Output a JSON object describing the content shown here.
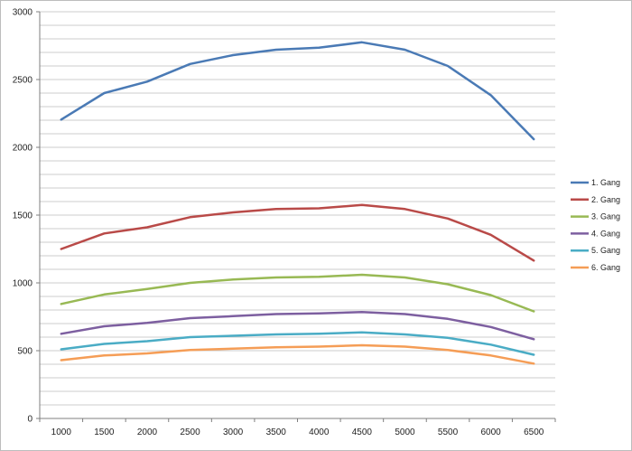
{
  "chart_data": {
    "type": "line",
    "title": "",
    "xlabel": "",
    "ylabel": "",
    "x": [
      1000,
      1500,
      2000,
      2500,
      3000,
      3500,
      4000,
      4500,
      5000,
      5500,
      6000,
      6500
    ],
    "ylim": [
      0,
      3000
    ],
    "y_ticks": [
      0,
      500,
      1000,
      1500,
      2000,
      2500,
      3000
    ],
    "y_tick_labels": [
      "0",
      "500",
      "1000",
      "1500",
      "2000",
      "2500",
      "3000"
    ],
    "x_tick_labels": [
      "1000",
      "1500",
      "2000",
      "2500",
      "3000",
      "3500",
      "4000",
      "4500",
      "5000",
      "5500",
      "6000",
      "6500"
    ],
    "grid": true,
    "minor_grid_step": 100,
    "legend_position": "right",
    "series": [
      {
        "name": "1. Gang",
        "color": "#4a7ab5",
        "values": [
          2205,
          2400,
          2485,
          2615,
          2680,
          2720,
          2735,
          2775,
          2720,
          2600,
          2385,
          2060
        ]
      },
      {
        "name": "2. Gang",
        "color": "#b94a48",
        "values": [
          1250,
          1365,
          1410,
          1485,
          1520,
          1545,
          1550,
          1575,
          1545,
          1475,
          1355,
          1165
        ]
      },
      {
        "name": "3. Gang",
        "color": "#98b954",
        "values": [
          845,
          915,
          955,
          1000,
          1025,
          1040,
          1045,
          1060,
          1040,
          990,
          910,
          790
        ]
      },
      {
        "name": "4. Gang",
        "color": "#7d5fa0",
        "values": [
          625,
          680,
          705,
          740,
          755,
          770,
          775,
          785,
          770,
          735,
          675,
          585
        ]
      },
      {
        "name": "5. Gang",
        "color": "#4aacc5",
        "values": [
          510,
          550,
          570,
          600,
          610,
          620,
          625,
          635,
          620,
          595,
          545,
          470
        ]
      },
      {
        "name": "6. Gang",
        "color": "#f59d56",
        "values": [
          430,
          465,
          480,
          505,
          515,
          525,
          530,
          540,
          530,
          505,
          465,
          405
        ]
      }
    ]
  }
}
